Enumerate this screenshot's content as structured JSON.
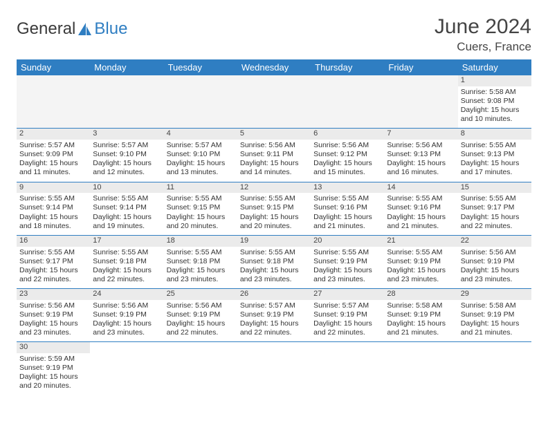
{
  "logo": {
    "text1": "General",
    "text2": "Blue",
    "sail_color": "#2f7ec2",
    "text_color": "#3a3a3a"
  },
  "header": {
    "month_title": "June 2024",
    "location": "Cuers, France"
  },
  "colors": {
    "header_bg": "#2f7ec2",
    "header_text": "#ffffff",
    "daynum_bg": "#ebebeb",
    "border": "#2f7ec2"
  },
  "day_names": [
    "Sunday",
    "Monday",
    "Tuesday",
    "Wednesday",
    "Thursday",
    "Friday",
    "Saturday"
  ],
  "weeks": [
    [
      null,
      null,
      null,
      null,
      null,
      null,
      {
        "n": "1",
        "sr": "Sunrise: 5:58 AM",
        "ss": "Sunset: 9:08 PM",
        "d1": "Daylight: 15 hours",
        "d2": "and 10 minutes."
      }
    ],
    [
      {
        "n": "2",
        "sr": "Sunrise: 5:57 AM",
        "ss": "Sunset: 9:09 PM",
        "d1": "Daylight: 15 hours",
        "d2": "and 11 minutes."
      },
      {
        "n": "3",
        "sr": "Sunrise: 5:57 AM",
        "ss": "Sunset: 9:10 PM",
        "d1": "Daylight: 15 hours",
        "d2": "and 12 minutes."
      },
      {
        "n": "4",
        "sr": "Sunrise: 5:57 AM",
        "ss": "Sunset: 9:10 PM",
        "d1": "Daylight: 15 hours",
        "d2": "and 13 minutes."
      },
      {
        "n": "5",
        "sr": "Sunrise: 5:56 AM",
        "ss": "Sunset: 9:11 PM",
        "d1": "Daylight: 15 hours",
        "d2": "and 14 minutes."
      },
      {
        "n": "6",
        "sr": "Sunrise: 5:56 AM",
        "ss": "Sunset: 9:12 PM",
        "d1": "Daylight: 15 hours",
        "d2": "and 15 minutes."
      },
      {
        "n": "7",
        "sr": "Sunrise: 5:56 AM",
        "ss": "Sunset: 9:13 PM",
        "d1": "Daylight: 15 hours",
        "d2": "and 16 minutes."
      },
      {
        "n": "8",
        "sr": "Sunrise: 5:55 AM",
        "ss": "Sunset: 9:13 PM",
        "d1": "Daylight: 15 hours",
        "d2": "and 17 minutes."
      }
    ],
    [
      {
        "n": "9",
        "sr": "Sunrise: 5:55 AM",
        "ss": "Sunset: 9:14 PM",
        "d1": "Daylight: 15 hours",
        "d2": "and 18 minutes."
      },
      {
        "n": "10",
        "sr": "Sunrise: 5:55 AM",
        "ss": "Sunset: 9:14 PM",
        "d1": "Daylight: 15 hours",
        "d2": "and 19 minutes."
      },
      {
        "n": "11",
        "sr": "Sunrise: 5:55 AM",
        "ss": "Sunset: 9:15 PM",
        "d1": "Daylight: 15 hours",
        "d2": "and 20 minutes."
      },
      {
        "n": "12",
        "sr": "Sunrise: 5:55 AM",
        "ss": "Sunset: 9:15 PM",
        "d1": "Daylight: 15 hours",
        "d2": "and 20 minutes."
      },
      {
        "n": "13",
        "sr": "Sunrise: 5:55 AM",
        "ss": "Sunset: 9:16 PM",
        "d1": "Daylight: 15 hours",
        "d2": "and 21 minutes."
      },
      {
        "n": "14",
        "sr": "Sunrise: 5:55 AM",
        "ss": "Sunset: 9:16 PM",
        "d1": "Daylight: 15 hours",
        "d2": "and 21 minutes."
      },
      {
        "n": "15",
        "sr": "Sunrise: 5:55 AM",
        "ss": "Sunset: 9:17 PM",
        "d1": "Daylight: 15 hours",
        "d2": "and 22 minutes."
      }
    ],
    [
      {
        "n": "16",
        "sr": "Sunrise: 5:55 AM",
        "ss": "Sunset: 9:17 PM",
        "d1": "Daylight: 15 hours",
        "d2": "and 22 minutes."
      },
      {
        "n": "17",
        "sr": "Sunrise: 5:55 AM",
        "ss": "Sunset: 9:18 PM",
        "d1": "Daylight: 15 hours",
        "d2": "and 22 minutes."
      },
      {
        "n": "18",
        "sr": "Sunrise: 5:55 AM",
        "ss": "Sunset: 9:18 PM",
        "d1": "Daylight: 15 hours",
        "d2": "and 23 minutes."
      },
      {
        "n": "19",
        "sr": "Sunrise: 5:55 AM",
        "ss": "Sunset: 9:18 PM",
        "d1": "Daylight: 15 hours",
        "d2": "and 23 minutes."
      },
      {
        "n": "20",
        "sr": "Sunrise: 5:55 AM",
        "ss": "Sunset: 9:19 PM",
        "d1": "Daylight: 15 hours",
        "d2": "and 23 minutes."
      },
      {
        "n": "21",
        "sr": "Sunrise: 5:55 AM",
        "ss": "Sunset: 9:19 PM",
        "d1": "Daylight: 15 hours",
        "d2": "and 23 minutes."
      },
      {
        "n": "22",
        "sr": "Sunrise: 5:56 AM",
        "ss": "Sunset: 9:19 PM",
        "d1": "Daylight: 15 hours",
        "d2": "and 23 minutes."
      }
    ],
    [
      {
        "n": "23",
        "sr": "Sunrise: 5:56 AM",
        "ss": "Sunset: 9:19 PM",
        "d1": "Daylight: 15 hours",
        "d2": "and 23 minutes."
      },
      {
        "n": "24",
        "sr": "Sunrise: 5:56 AM",
        "ss": "Sunset: 9:19 PM",
        "d1": "Daylight: 15 hours",
        "d2": "and 23 minutes."
      },
      {
        "n": "25",
        "sr": "Sunrise: 5:56 AM",
        "ss": "Sunset: 9:19 PM",
        "d1": "Daylight: 15 hours",
        "d2": "and 22 minutes."
      },
      {
        "n": "26",
        "sr": "Sunrise: 5:57 AM",
        "ss": "Sunset: 9:19 PM",
        "d1": "Daylight: 15 hours",
        "d2": "and 22 minutes."
      },
      {
        "n": "27",
        "sr": "Sunrise: 5:57 AM",
        "ss": "Sunset: 9:19 PM",
        "d1": "Daylight: 15 hours",
        "d2": "and 22 minutes."
      },
      {
        "n": "28",
        "sr": "Sunrise: 5:58 AM",
        "ss": "Sunset: 9:19 PM",
        "d1": "Daylight: 15 hours",
        "d2": "and 21 minutes."
      },
      {
        "n": "29",
        "sr": "Sunrise: 5:58 AM",
        "ss": "Sunset: 9:19 PM",
        "d1": "Daylight: 15 hours",
        "d2": "and 21 minutes."
      }
    ],
    [
      {
        "n": "30",
        "sr": "Sunrise: 5:59 AM",
        "ss": "Sunset: 9:19 PM",
        "d1": "Daylight: 15 hours",
        "d2": "and 20 minutes."
      },
      null,
      null,
      null,
      null,
      null,
      null
    ]
  ]
}
